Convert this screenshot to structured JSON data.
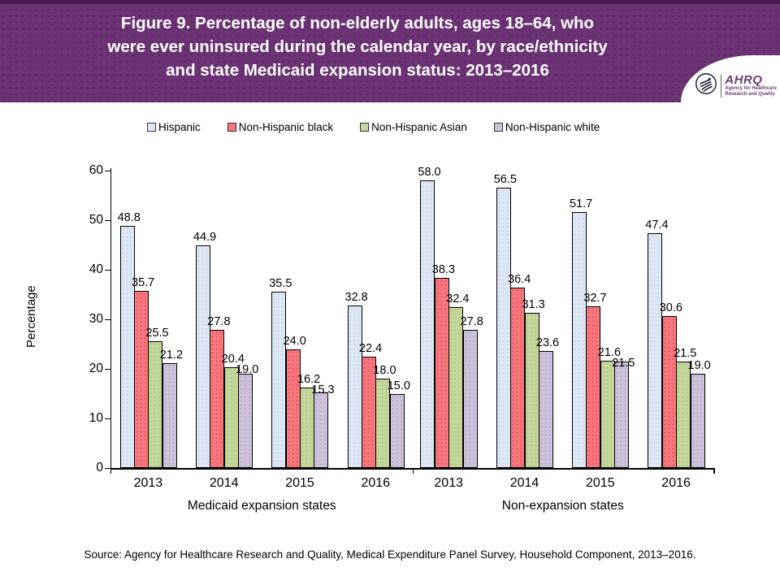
{
  "header": {
    "title_lines": [
      "Figure 9. Percentage of non-elderly adults, ages 18–64, who",
      "were ever uninsured during the calendar year, by race/ethnicity",
      "and state Medicaid expansion status: 2013–2016"
    ],
    "logo": {
      "icon": "hhs-eagle-icon",
      "brand": "AHRQ",
      "tagline_lines": [
        "Agency for Healthcare",
        "Research and Quality"
      ]
    }
  },
  "chart_data": {
    "type": "bar",
    "title": "Figure 9. Percentage of non-elderly adults, ages 18–64, who were ever uninsured during the calendar year, by race/ethnicity and state Medicaid expansion status: 2013–2016",
    "xlabel": "",
    "ylabel": "Percentage",
    "ylim": [
      0,
      60
    ],
    "ytick_step": 10,
    "grid": false,
    "legend_position": "top",
    "categories": [
      "2013",
      "2014",
      "2015",
      "2016",
      "2013",
      "2014",
      "2015",
      "2016"
    ],
    "group_labels": [
      "Medicaid expansion states",
      "Non-expansion states"
    ],
    "series": [
      {
        "name": "Hispanic",
        "color": "#dde8f4",
        "dot_color": "#c2d6ec",
        "values": [
          48.8,
          44.9,
          35.5,
          32.8,
          58.0,
          56.5,
          51.7,
          47.4
        ]
      },
      {
        "name": "Non-Hispanic black",
        "color": "#f6777e",
        "dot_color": "#ea5258",
        "values": [
          35.7,
          27.8,
          24.0,
          22.4,
          38.3,
          36.4,
          32.7,
          30.6
        ]
      },
      {
        "name": "Non-Hispanic Asian",
        "color": "#c3d69b",
        "dot_color": "#aec77c",
        "values": [
          25.5,
          20.4,
          16.2,
          18.0,
          32.4,
          31.3,
          21.6,
          21.5
        ]
      },
      {
        "name": "Non-Hispanic white",
        "color": "#cdc2db",
        "dot_color": "#b6a5ca",
        "values": [
          21.2,
          19.0,
          15.3,
          15.0,
          27.8,
          23.6,
          21.5,
          19.0
        ]
      }
    ]
  },
  "source": "Source: Agency for Healthcare Research and Quality, Medical Expenditure Panel Survey, Household Component, 2013–2016."
}
